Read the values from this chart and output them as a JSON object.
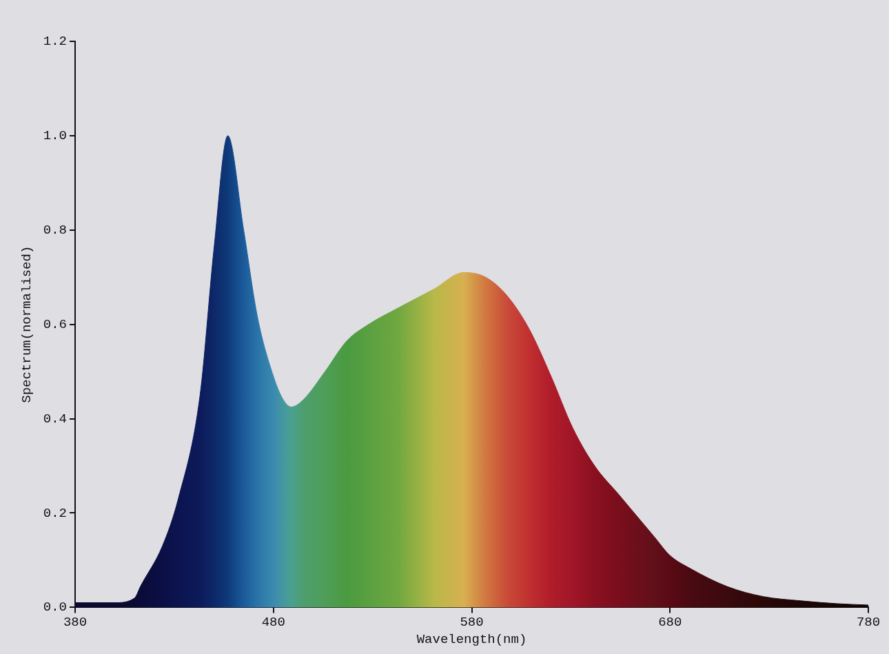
{
  "chart_data": {
    "type": "area",
    "xlabel": "Wavelength(nm)",
    "ylabel": "Spectrum(normalised)",
    "x": [
      380,
      390,
      400,
      410,
      413,
      424,
      432,
      443,
      450,
      457,
      465,
      472,
      480,
      485,
      489,
      495,
      506,
      517,
      528,
      543,
      561,
      576,
      587,
      598,
      609,
      620,
      631,
      642,
      654,
      672,
      680,
      690,
      709,
      727,
      746,
      764,
      780
    ],
    "series": [
      {
        "values": [
          0.01,
          0.01,
          0.01,
          0.02,
          0.045,
          0.13,
          0.23,
          0.45,
          0.76,
          1.0,
          0.8,
          0.615,
          0.49,
          0.44,
          0.425,
          0.44,
          0.5,
          0.565,
          0.6,
          0.635,
          0.675,
          0.71,
          0.7,
          0.66,
          0.59,
          0.49,
          0.38,
          0.3,
          0.24,
          0.15,
          0.11,
          0.083,
          0.044,
          0.023,
          0.014,
          0.008,
          0.005
        ],
        "colors": [
          "#0a0a30",
          "#0a0a30",
          "#0a0a30",
          "#0a0a34",
          "#0a0b38",
          "#0b0f45",
          "#0c1450",
          "#0d1a5a",
          "#0e2868",
          "#0e3a7a",
          "#1b5a9a",
          "#2a74a8",
          "#3a8ab0",
          "#45989e",
          "#4aa090",
          "#4e9e70",
          "#4e9e58",
          "#4a9a40",
          "#5aa040",
          "#70a840",
          "#b8b848",
          "#d8b050",
          "#d07840",
          "#c84a38",
          "#c03030",
          "#b01c2a",
          "#a01628",
          "#8a1020",
          "#7a0e1c",
          "#60101a",
          "#5a0a14",
          "#4a0a12",
          "#3a0a0e",
          "#2a0808",
          "#1e0606",
          "#160505",
          "#100404"
        ]
      }
    ],
    "xlim": [
      380,
      780
    ],
    "xticks": [
      380,
      480,
      580,
      680,
      780
    ],
    "ylim": [
      0,
      1.2
    ],
    "yticks": [
      {
        "value": 0,
        "label": "0.0"
      },
      {
        "value": 0.2,
        "label": "0.2"
      },
      {
        "value": 0.4,
        "label": "0.4"
      },
      {
        "value": 0.6,
        "label": "0.6"
      },
      {
        "value": 0.8,
        "label": "0.8"
      },
      {
        "value": 1.0,
        "label": "1.0"
      },
      {
        "value": 1.2,
        "label": "1.2"
      }
    ],
    "grid": false,
    "legend": false
  }
}
